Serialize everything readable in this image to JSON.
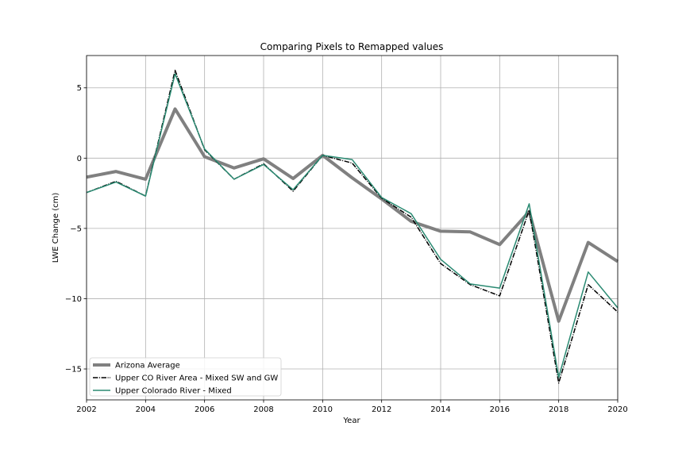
{
  "chart_data": {
    "type": "line",
    "title": "Comparing Pixels to Remapped values",
    "xlabel": "Year",
    "ylabel": "LWE Change (cm)",
    "xlim": [
      2002,
      2020
    ],
    "ylim": [
      -17.2,
      7.3
    ],
    "xticks": [
      2002,
      2004,
      2006,
      2008,
      2010,
      2012,
      2014,
      2016,
      2018,
      2020
    ],
    "yticks": [
      5,
      0,
      -5,
      -10,
      -15
    ],
    "ytick_labels": [
      "5",
      "0",
      "−5",
      "−10",
      "−15"
    ],
    "grid": true,
    "legend_position": "lower-left",
    "x": [
      2002,
      2003,
      2004,
      2005,
      2006,
      2007,
      2008,
      2009,
      2010,
      2011,
      2012,
      2013,
      2014,
      2015,
      2016,
      2017,
      2018,
      2019,
      2020
    ],
    "series": [
      {
        "name": "Arizona Average",
        "color": "#808080",
        "style": "solid-thick",
        "values": [
          -1.35,
          -0.95,
          -1.5,
          3.5,
          0.1,
          -0.7,
          -0.05,
          -1.45,
          0.2,
          -1.4,
          -2.9,
          -4.5,
          -5.2,
          -5.25,
          -6.15,
          -3.8,
          -11.6,
          -6.0,
          -7.35
        ]
      },
      {
        "name": "Upper CO River Area - Mixed SW and GW",
        "color": "#000000",
        "style": "dashdot",
        "values": [
          -2.45,
          -1.65,
          -2.7,
          6.25,
          0.6,
          -1.5,
          -0.4,
          -2.35,
          0.2,
          -0.35,
          -2.85,
          -4.2,
          -7.5,
          -9.0,
          -9.8,
          -3.7,
          -16.0,
          -9.0,
          -10.95
        ]
      },
      {
        "name": "Upper Colorado River - Mixed",
        "color": "#2a8a72",
        "style": "solid-thin",
        "values": [
          -2.45,
          -1.7,
          -2.7,
          6.0,
          0.65,
          -1.5,
          -0.45,
          -2.25,
          0.2,
          -0.1,
          -2.8,
          -3.95,
          -7.2,
          -8.95,
          -9.25,
          -3.25,
          -15.6,
          -8.1,
          -10.65
        ]
      }
    ]
  }
}
